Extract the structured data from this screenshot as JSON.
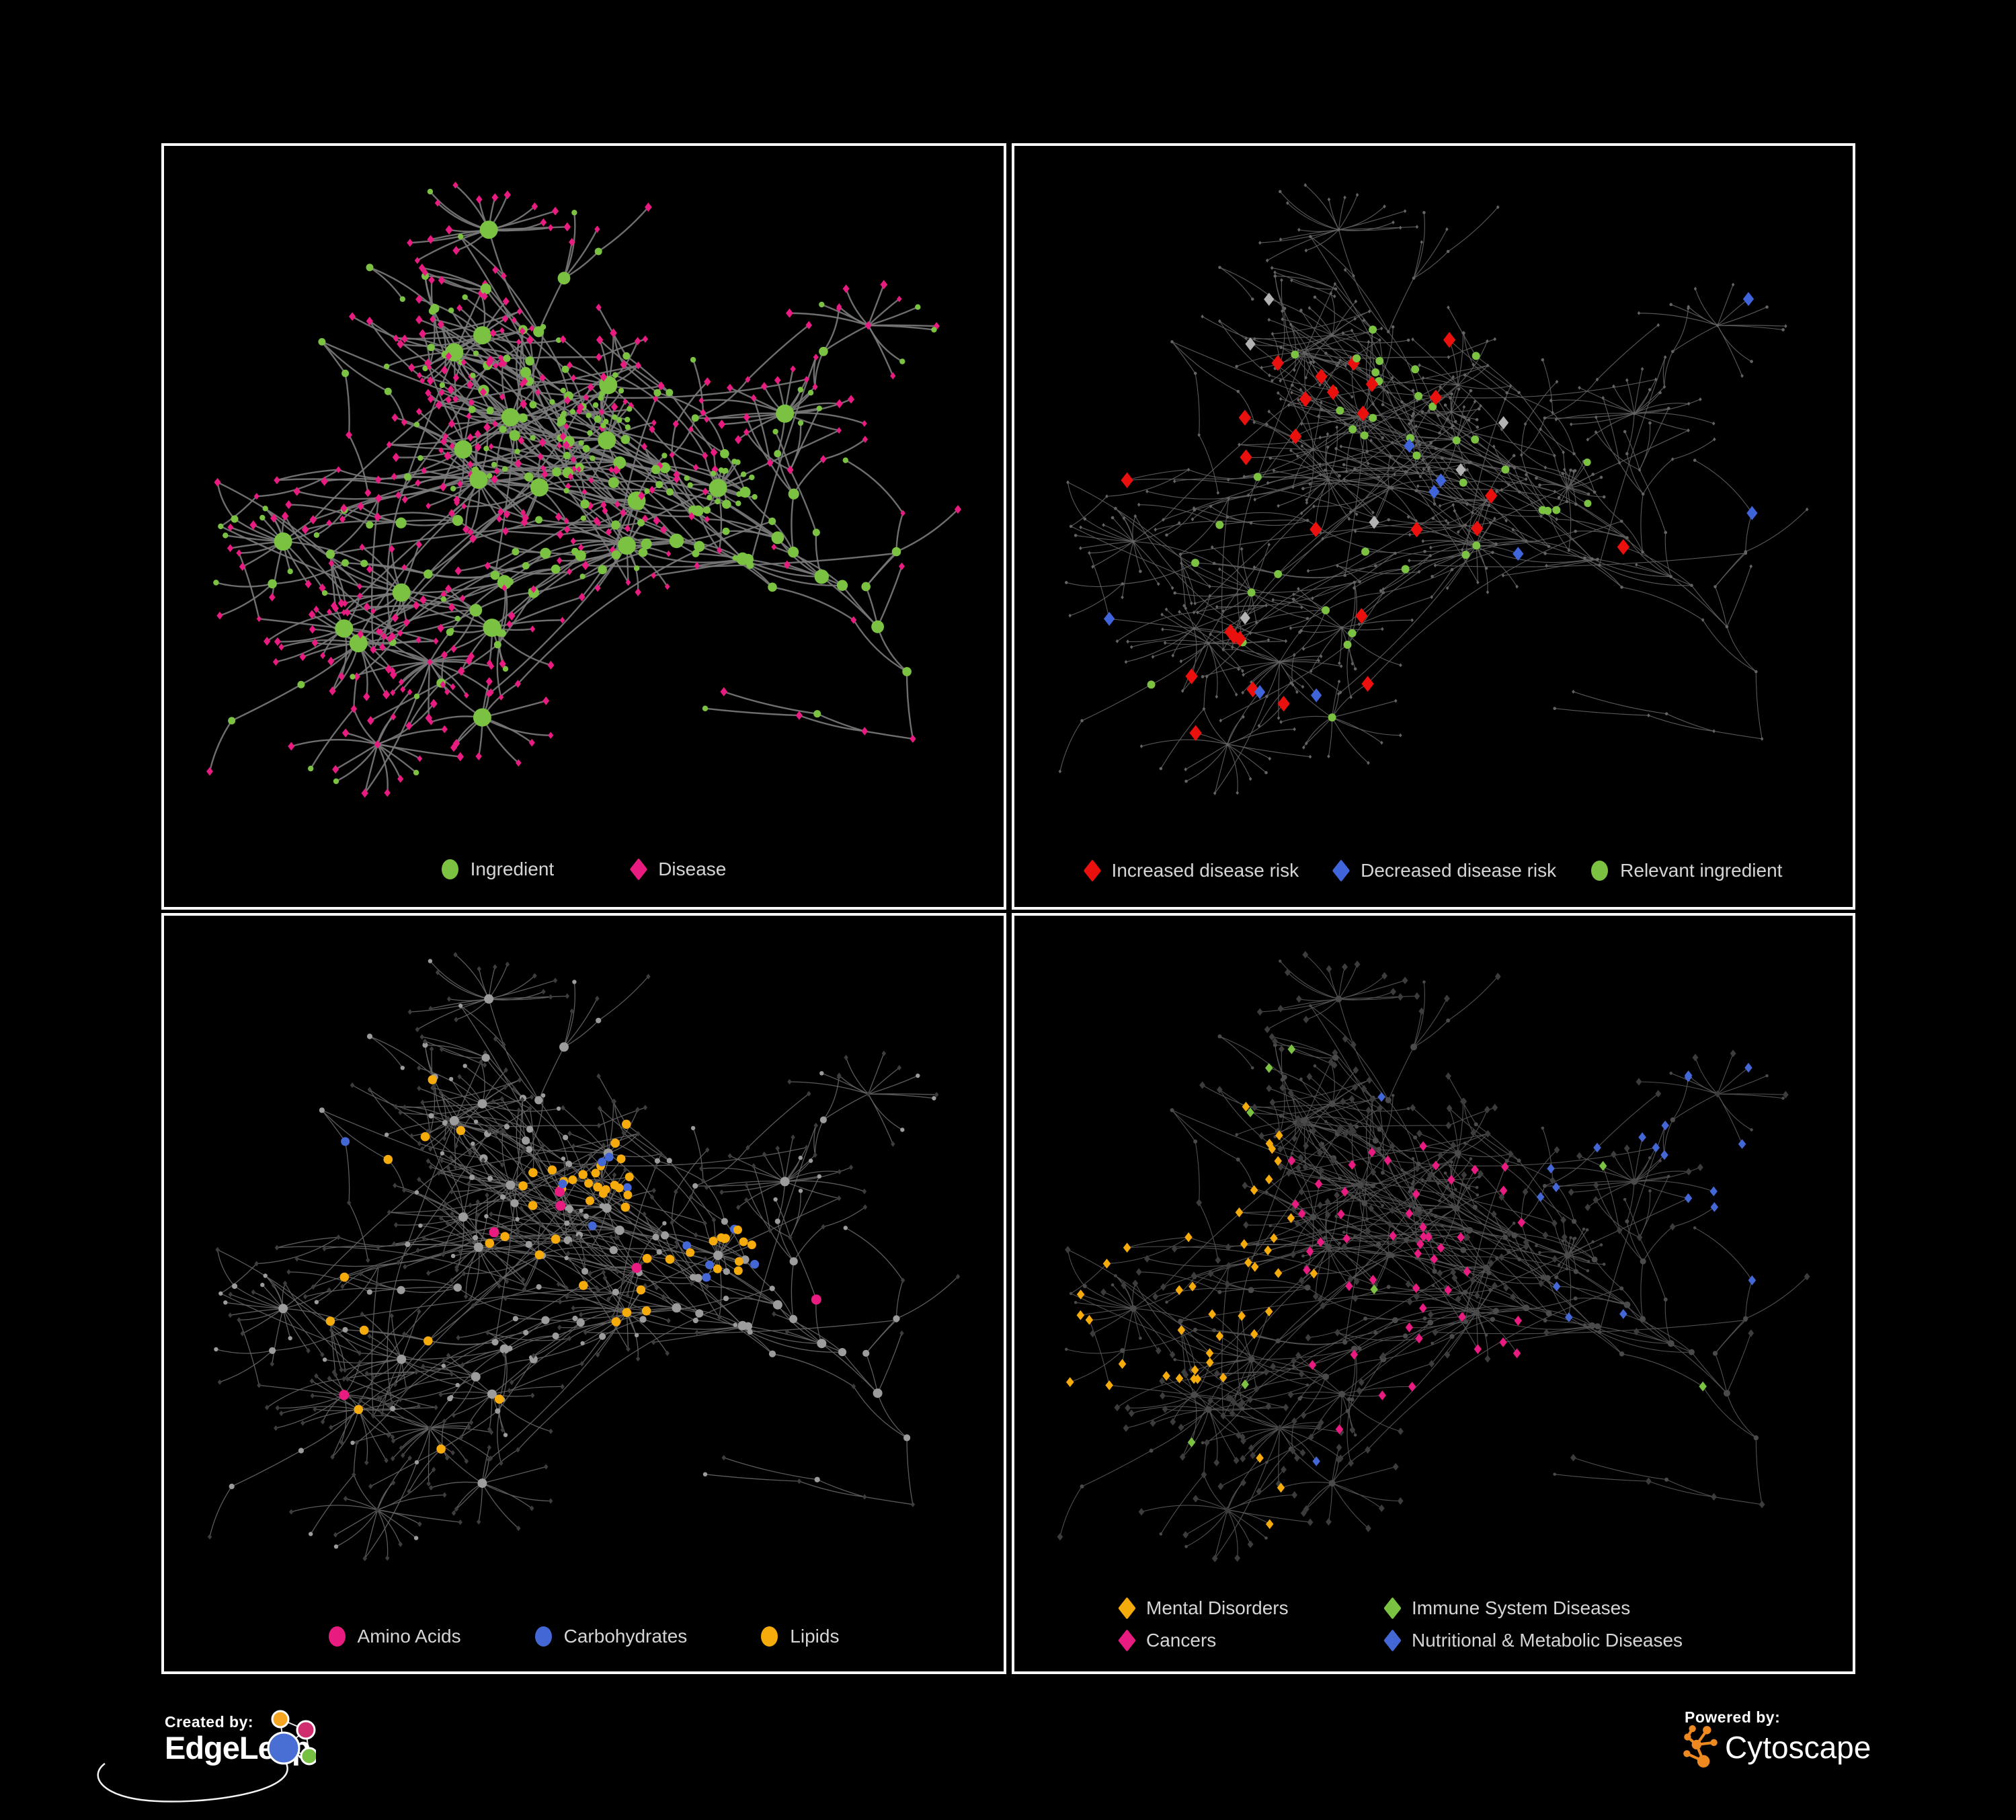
{
  "page": {
    "background": "#000000",
    "panel_border": "#ffffff"
  },
  "network": {
    "seed": 11,
    "node_count": 620,
    "extra_edges": 58,
    "burst_chance": 0.05,
    "clump_count": 2
  },
  "chart_data": {
    "type": "network",
    "description_visible": false,
    "panel_count": 4,
    "shared_layout": true
  },
  "panels": [
    {
      "id": "ingredient-disease",
      "legend": [
        {
          "shape": "circle",
          "label": "Ingredient",
          "color": "#7cc242"
        },
        {
          "shape": "diamond",
          "label": "Disease",
          "color": "#e81c80"
        }
      ],
      "colors": {
        "ingredient": "#7cc242",
        "disease": "#e81c80"
      },
      "edge": {
        "color": "#7a7a7a",
        "width": 2.4
      }
    },
    {
      "id": "disease-risk",
      "legend": [
        {
          "shape": "diamond",
          "label": "Increased disease risk",
          "color": "#ea100e"
        },
        {
          "shape": "diamond",
          "label": "Decreased disease risk",
          "color": "#4064d9"
        },
        {
          "shape": "circle",
          "label": "Relevant ingredient",
          "color": "#7cc242"
        }
      ],
      "colors": {
        "increased": "#ea100e",
        "decreased": "#4064d9",
        "relevant": "#7cc242",
        "neutral": "#b2b2b2",
        "base": "#646464"
      },
      "edge": {
        "color": "#5f5f5f",
        "width": 1.15
      }
    },
    {
      "id": "nutrient-classes",
      "legend": [
        {
          "shape": "circle",
          "label": "Amino Acids",
          "color": "#e81c80"
        },
        {
          "shape": "circle",
          "label": "Carbohydrates",
          "color": "#4467d6"
        },
        {
          "shape": "circle",
          "label": "Lipids",
          "color": "#f6ab0c"
        }
      ],
      "colors": {
        "amino": "#e81c80",
        "carbs": "#4467d6",
        "lipids": "#f6ab0c",
        "circle_base": "#9c9c9c",
        "diamond_base": "#3d3d3d"
      },
      "edge": {
        "color": "#656565",
        "width": 1.3
      }
    },
    {
      "id": "disease-classes",
      "legend": [
        {
          "shape": "diamond",
          "label": "Mental Disorders",
          "color": "#f6ab0c"
        },
        {
          "shape": "diamond",
          "label": "Immune System Diseases",
          "color": "#7cc242"
        },
        {
          "shape": "diamond",
          "label": "Cancers",
          "color": "#e81c80"
        },
        {
          "shape": "diamond",
          "label": "Nutritional & Metabolic Diseases",
          "color": "#4467d6"
        }
      ],
      "colors": {
        "mental": "#f6ab0c",
        "immune": "#7cc242",
        "cancers": "#e81c80",
        "nutritional": "#4467d6",
        "diamond_base": "#3c3c3c",
        "circle_base": "#4a4a4a"
      },
      "edge": {
        "color": "#585858",
        "width": 1.1
      }
    }
  ],
  "footer": {
    "created_by": {
      "label": "Created by:",
      "brand": "EdgeLeap",
      "logo_colors": [
        "#f5a623",
        "#cf2d6e",
        "#4a6fd4",
        "#76c043"
      ]
    },
    "powered_by": {
      "label": "Powered by:",
      "brand": "Cytoscape",
      "logo_color": "#ee8922"
    }
  }
}
